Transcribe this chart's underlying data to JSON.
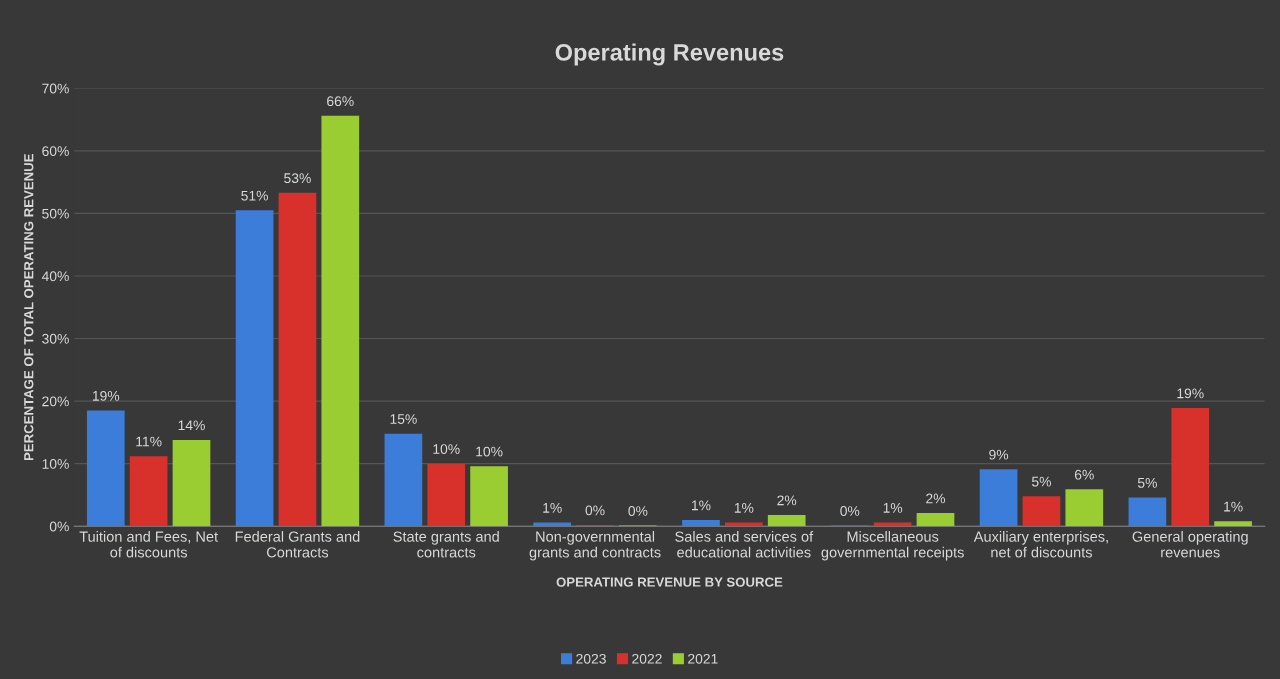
{
  "chart_data": {
    "type": "bar",
    "title": "Operating Revenues",
    "xlabel": "OPERATING REVENUE BY SOURCE",
    "ylabel": "PERCENTAGE OF TOTAL OPERATING REVENUE",
    "categories": [
      "Tuition and Fees, Net of discounts",
      "Federal Grants and Contracts",
      "State grants and contracts",
      "Non-governmental grants and contracts",
      "Sales and services of educational activities",
      "Miscellaneous governmental receipts",
      "Auxiliary enterprises, net of discounts",
      "General operating revenues"
    ],
    "series": [
      {
        "name": "2023",
        "color": "#3b7dd8",
        "values": [
          18.5,
          50.5,
          14.8,
          0.6,
          1.0,
          0.1,
          9.1,
          4.6
        ],
        "value_labels": [
          "19%",
          "51%",
          "15%",
          "1%",
          "1%",
          "0%",
          "9%",
          "5%"
        ]
      },
      {
        "name": "2022",
        "color": "#d8302b",
        "values": [
          11.2,
          53.3,
          10.0,
          0.2,
          0.6,
          0.6,
          4.8,
          18.9
        ],
        "value_labels": [
          "11%",
          "53%",
          "10%",
          "0%",
          "1%",
          "1%",
          "5%",
          "19%"
        ]
      },
      {
        "name": "2021",
        "color": "#9acd32",
        "values": [
          13.8,
          65.6,
          9.6,
          0.1,
          1.8,
          2.1,
          5.9,
          0.8
        ],
        "value_labels": [
          "14%",
          "66%",
          "10%",
          "0%",
          "2%",
          "2%",
          "6%",
          "1%"
        ]
      }
    ],
    "ylim": [
      0,
      70
    ],
    "yticks": [
      {
        "value": 0,
        "label": "0%"
      },
      {
        "value": 10,
        "label": "10%"
      },
      {
        "value": 20,
        "label": "20%"
      },
      {
        "value": 30,
        "label": "30%"
      },
      {
        "value": 40,
        "label": "40%"
      },
      {
        "value": 50,
        "label": "50%"
      },
      {
        "value": 60,
        "label": "60%"
      },
      {
        "value": 70,
        "label": "70%"
      }
    ],
    "grid": "y",
    "legend": "bottom"
  }
}
